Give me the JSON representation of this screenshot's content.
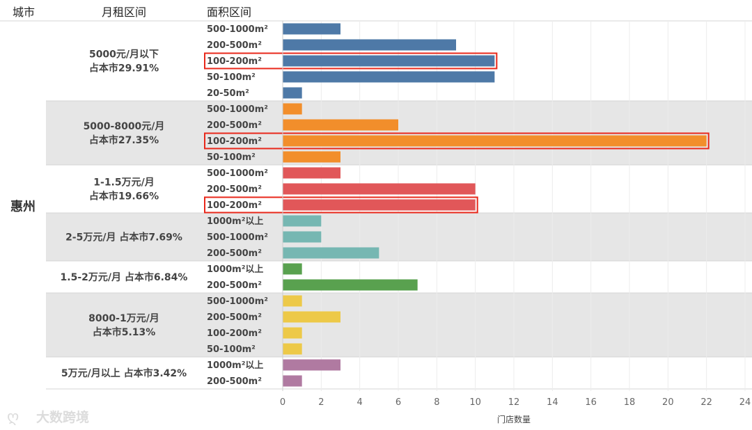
{
  "headers": {
    "city": "城市",
    "rent": "月租区间",
    "area": "面积区间"
  },
  "city": "惠州",
  "watermark": "大数跨境",
  "chart_data": {
    "type": "bar",
    "orientation": "horizontal",
    "xlabel": "门店数量",
    "xlim": [
      0,
      24
    ],
    "xticks": [
      0,
      2,
      4,
      6,
      8,
      10,
      12,
      14,
      16,
      18,
      20,
      22,
      24
    ],
    "groups": [
      {
        "label1": "5000元/月以下",
        "label2": "占本市29.91%",
        "color": "#4e79a7",
        "bars": [
          {
            "category": "500-1000m²",
            "value": 3
          },
          {
            "category": "200-500m²",
            "value": 9
          },
          {
            "category": "100-200m²",
            "value": 11,
            "highlight": true
          },
          {
            "category": "50-100m²",
            "value": 11
          },
          {
            "category": "20-50m²",
            "value": 1
          }
        ]
      },
      {
        "label1": "5000-8000元/月",
        "label2": "占本市27.35%",
        "color": "#f28e2b",
        "bars": [
          {
            "category": "500-1000m²",
            "value": 1
          },
          {
            "category": "200-500m²",
            "value": 6
          },
          {
            "category": "100-200m²",
            "value": 22,
            "highlight": true
          },
          {
            "category": "50-100m²",
            "value": 3
          }
        ]
      },
      {
        "label1": "1-1.5万元/月",
        "label2": "占本市19.66%",
        "color": "#e15759",
        "bars": [
          {
            "category": "500-1000m²",
            "value": 3
          },
          {
            "category": "200-500m²",
            "value": 10
          },
          {
            "category": "100-200m²",
            "value": 10,
            "highlight": true
          }
        ]
      },
      {
        "label1": "2-5万元/月  占本市7.69%",
        "label2": "",
        "color": "#76b7b2",
        "bars": [
          {
            "category": "1000m²以上",
            "value": 2
          },
          {
            "category": "500-1000m²",
            "value": 2
          },
          {
            "category": "200-500m²",
            "value": 5
          }
        ]
      },
      {
        "label1": "1.5-2万元/月  占本市6.84%",
        "label2": "",
        "color": "#59a14f",
        "bars": [
          {
            "category": "1000m²以上",
            "value": 1
          },
          {
            "category": "200-500m²",
            "value": 7
          }
        ]
      },
      {
        "label1": "8000-1万元/月",
        "label2": "占本市5.13%",
        "color": "#edc948",
        "bars": [
          {
            "category": "500-1000m²",
            "value": 1
          },
          {
            "category": "200-500m²",
            "value": 3
          },
          {
            "category": "100-200m²",
            "value": 1
          },
          {
            "category": "50-100m²",
            "value": 1
          }
        ]
      },
      {
        "label1": "5万元/月以上  占本市3.42%",
        "label2": "",
        "color": "#b07aa1",
        "bars": [
          {
            "category": "1000m²以上",
            "value": 3
          },
          {
            "category": "200-500m²",
            "value": 1
          }
        ]
      }
    ],
    "colors": {
      "group_shade": "#e6e6e6",
      "highlight_box": "#e8271a",
      "grid": "#ececec"
    }
  }
}
